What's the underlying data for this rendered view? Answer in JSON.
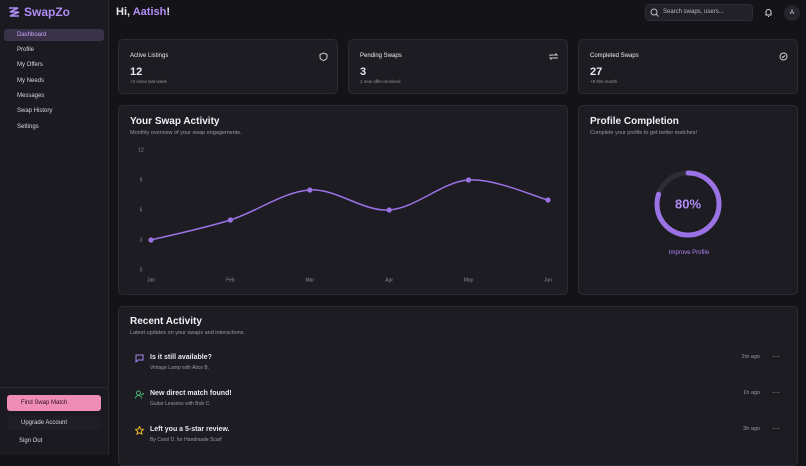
{
  "sidebar": {
    "brand": "SwapZo",
    "nav": [
      "Dashboard",
      "Profile",
      "My Offers",
      "My Needs",
      "Messages",
      "Swap History",
      "Settings"
    ],
    "find": "Find Swap Match",
    "upgrade": "Upgrade Account",
    "signout": "Sign Out"
  },
  "header": {
    "greeting": "Hi,",
    "user": "Aatish",
    "exclaim": "!",
    "search": "Search swaps, users...",
    "avatar": "A"
  },
  "stats": [
    {
      "title": "Active Listings",
      "value": 12,
      "note": "+2 since last week"
    },
    {
      "title": "Pending Swaps",
      "value": 3,
      "note": "1 new offer received"
    },
    {
      "title": "Completed Swaps",
      "value": 27,
      "note": "+5 this month"
    }
  ],
  "chart_data": {
    "type": "line",
    "title": "Your Swap Activity",
    "subtitle": "Monthly overview of your swap engagements.",
    "categories": [
      "Jan",
      "Feb",
      "Mar",
      "Apr",
      "May",
      "Jun"
    ],
    "values": [
      3,
      5,
      8,
      6,
      9,
      7
    ],
    "ylim": [
      0,
      12
    ],
    "yticks": [
      0,
      3,
      6,
      9,
      12
    ],
    "color": "#9b72e6"
  },
  "profile": {
    "title": "Profile Completion",
    "subtitle": "Complete your profile to get better matches!",
    "value": 80,
    "value_label": "80%",
    "link": "Improve Profile"
  },
  "activity": {
    "title": "Recent Activity",
    "subtitle": "Latest updates on your swaps and interactions.",
    "items": [
      {
        "title": "Is it still available?",
        "detail": "Vintage Lamp with Alice B.",
        "time": "2m ago"
      },
      {
        "title": "New direct match found!",
        "detail": "Guitar Lessons with Bob C.",
        "time": "1h ago"
      },
      {
        "title": "Left you a 5-star review.",
        "detail": "By Carol D. for Handmade Scarf",
        "time": "3h ago"
      }
    ]
  }
}
